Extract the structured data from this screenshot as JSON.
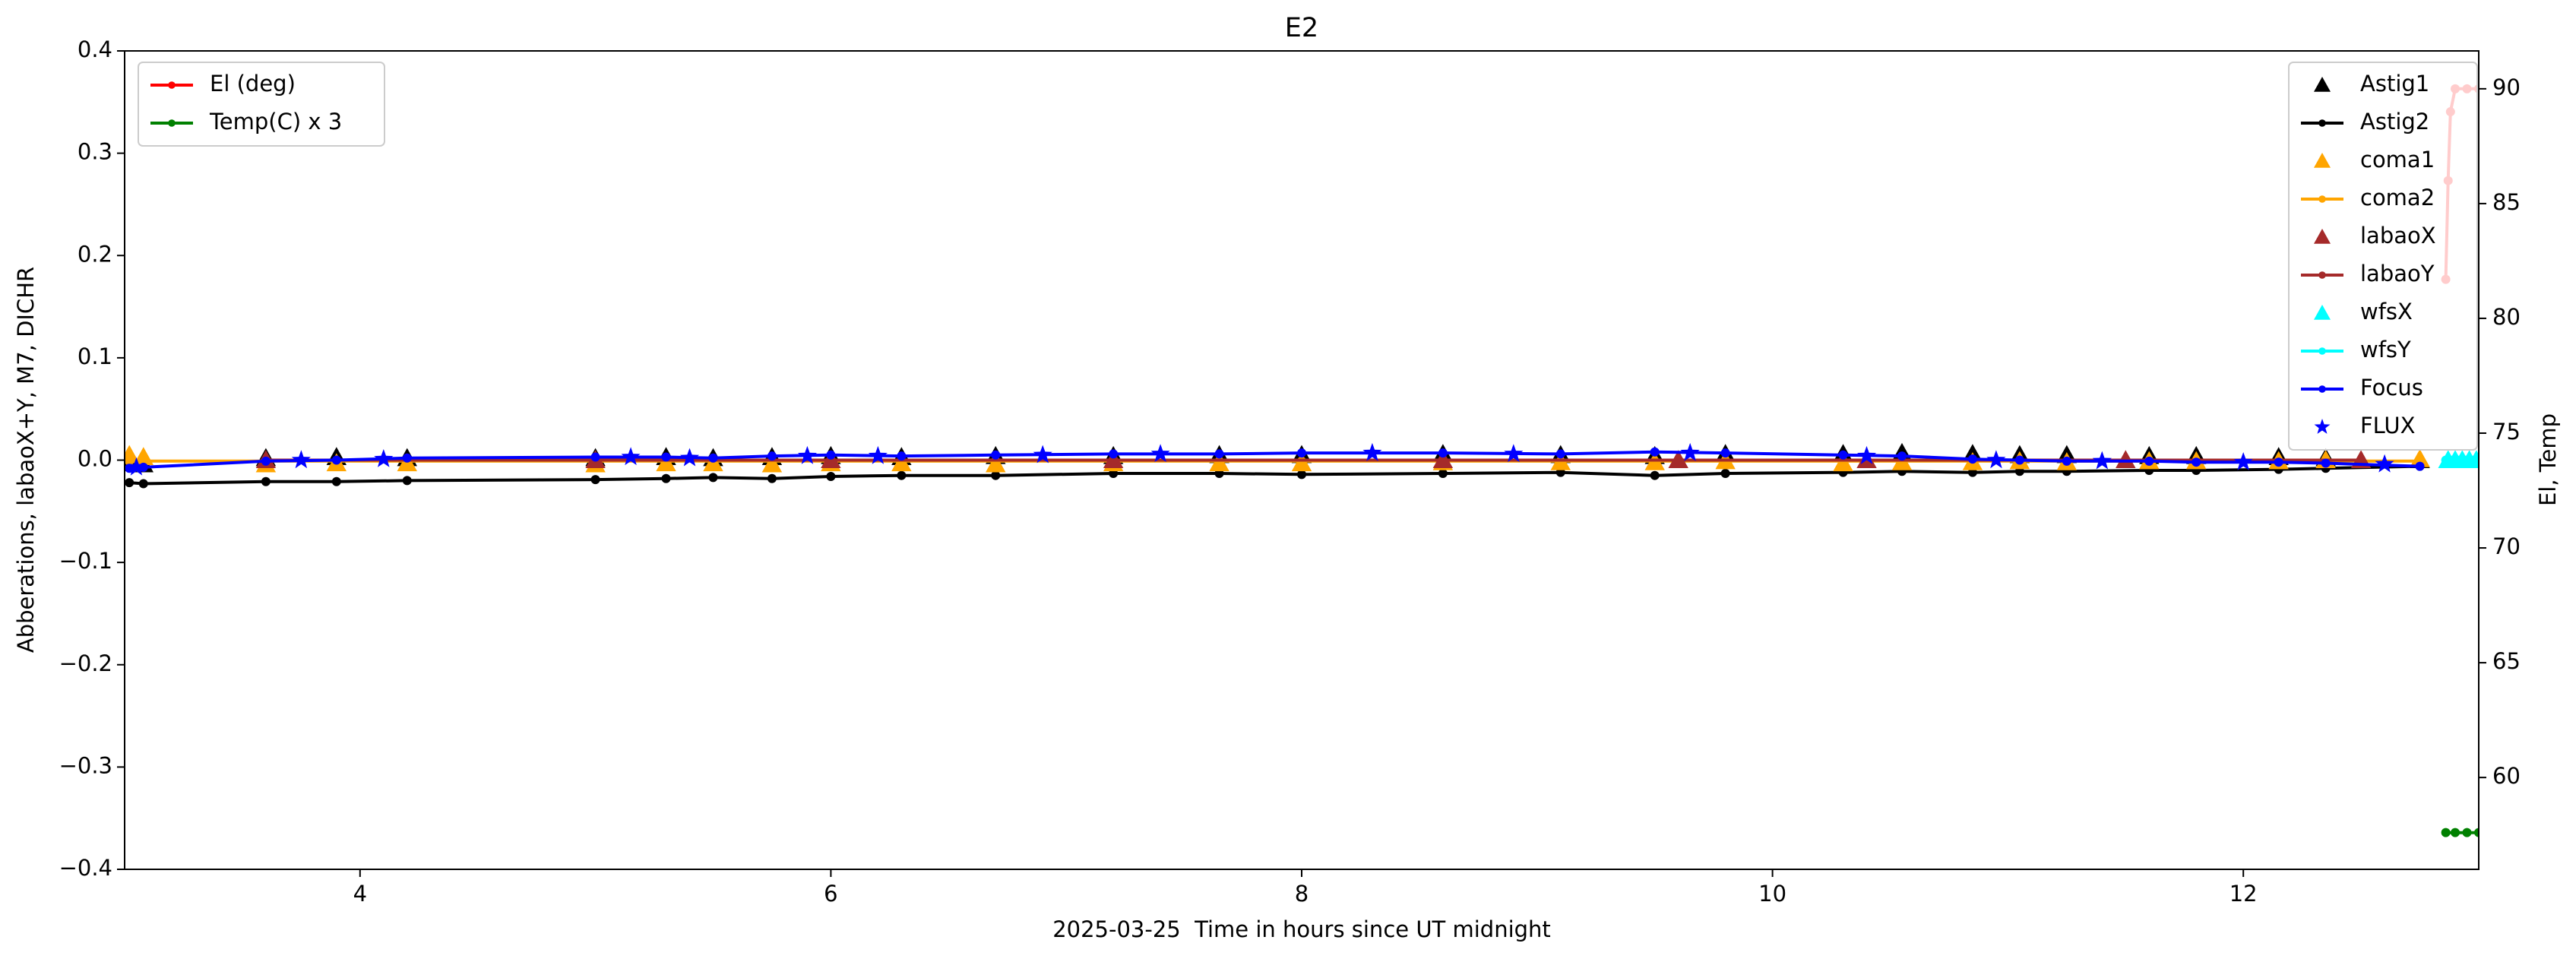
{
  "chart_data": {
    "type": "line",
    "title": "E2",
    "xlabel": "2025-03-25  Time in hours since UT midnight",
    "ylabel": "Abberations, labaoX+Y, M7, DICHR",
    "y2label": "El, Temp",
    "xlim": [
      3,
      13
    ],
    "xticks": [
      4,
      6,
      8,
      10,
      12
    ],
    "ylim": [
      -0.4,
      0.4
    ],
    "yticks": [
      {
        "value": -0.4,
        "label": "−0.4"
      },
      {
        "value": -0.3,
        "label": "−0.3"
      },
      {
        "value": -0.2,
        "label": "−0.2"
      },
      {
        "value": -0.1,
        "label": "−0.1"
      },
      {
        "value": 0,
        "label": "0.0"
      },
      0.1,
      0.2,
      0.3,
      0.4
    ],
    "y2lim": [
      56,
      91.65
    ],
    "y2ticks": [
      60,
      65,
      70,
      75,
      80,
      85,
      90
    ],
    "series": [
      {
        "name": "Astig1",
        "color": "#000000",
        "marker": "triangle",
        "line": false,
        "legend": "upper right",
        "x": [
          3.02,
          3.08,
          3.6,
          3.9,
          4.2,
          5.0,
          5.3,
          5.5,
          5.75,
          6.0,
          6.3,
          6.7,
          7.2,
          7.65,
          8.0,
          8.6,
          9.1,
          9.5,
          9.8,
          10.3,
          10.55,
          10.85,
          11.05,
          11.25,
          11.6,
          11.8,
          12.15,
          12.35,
          12.75
        ],
        "values": [
          -0.003,
          -0.004,
          0.002,
          0.003,
          0.002,
          0.002,
          0.003,
          0.002,
          0.003,
          0.004,
          0.003,
          0.004,
          0.004,
          0.005,
          0.005,
          0.006,
          0.005,
          0.004,
          0.006,
          0.006,
          0.007,
          0.006,
          0.005,
          0.005,
          0.004,
          0.004,
          0.003,
          0.002,
          0.0
        ]
      },
      {
        "name": "Astig2",
        "color": "#000000",
        "marker": "dot",
        "line": true,
        "legend": "upper right",
        "x": [
          3.02,
          3.08,
          3.6,
          3.9,
          4.2,
          5.0,
          5.3,
          5.5,
          5.75,
          6.0,
          6.3,
          6.7,
          7.2,
          7.65,
          8.0,
          8.6,
          9.1,
          9.5,
          9.8,
          10.3,
          10.55,
          10.85,
          11.05,
          11.25,
          11.6,
          11.8,
          12.15,
          12.35,
          12.75
        ],
        "values": [
          -0.022,
          -0.023,
          -0.021,
          -0.021,
          -0.02,
          -0.019,
          -0.018,
          -0.017,
          -0.018,
          -0.016,
          -0.015,
          -0.015,
          -0.013,
          -0.013,
          -0.014,
          -0.013,
          -0.012,
          -0.015,
          -0.013,
          -0.012,
          -0.011,
          -0.012,
          -0.011,
          -0.011,
          -0.01,
          -0.01,
          -0.009,
          -0.008,
          -0.006
        ]
      },
      {
        "name": "coma1",
        "color": "#ffa500",
        "marker": "triangle",
        "line": false,
        "legend": "upper right",
        "x": [
          3.02,
          3.08,
          3.6,
          3.9,
          4.2,
          5.0,
          5.3,
          5.5,
          5.75,
          6.0,
          6.3,
          6.7,
          7.2,
          7.65,
          8.0,
          8.6,
          9.1,
          9.5,
          9.8,
          10.3,
          10.55,
          10.85,
          11.05,
          11.25,
          11.6,
          11.8,
          12.15,
          12.35,
          12.75
        ],
        "values": [
          0.005,
          0.003,
          -0.004,
          -0.003,
          -0.003,
          -0.004,
          -0.003,
          -0.003,
          -0.004,
          -0.003,
          -0.003,
          -0.004,
          -0.003,
          -0.003,
          -0.003,
          -0.002,
          -0.002,
          -0.002,
          -0.001,
          -0.003,
          -0.002,
          -0.002,
          -0.001,
          -0.002,
          -0.001,
          -0.001,
          -0.001,
          0.0,
          0.001
        ]
      },
      {
        "name": "coma2",
        "color": "#ffa500",
        "marker": "dot",
        "line": true,
        "legend": "upper right",
        "x": [
          3.02,
          3.6,
          4.2,
          5.0,
          5.5,
          5.75,
          6.3,
          6.7,
          7.65,
          8.0,
          9.1,
          9.5,
          9.8,
          10.3,
          10.55,
          11.05,
          11.6,
          12.15,
          12.75
        ],
        "values": [
          -0.001,
          -0.001,
          -0.001,
          -0.001,
          -0.001,
          -0.001,
          -0.001,
          -0.001,
          -0.001,
          -0.001,
          -0.001,
          -0.001,
          -0.001,
          -0.001,
          -0.001,
          -0.001,
          -0.001,
          -0.001,
          -0.001
        ]
      },
      {
        "name": "labaoX",
        "color": "#a52a2a",
        "marker": "triangle",
        "line": false,
        "legend": "upper right",
        "x": [
          3.6,
          5.0,
          6.0,
          7.2,
          8.6,
          9.6,
          10.4,
          11.5,
          12.5
        ],
        "values": [
          0.0,
          0.0,
          0.0,
          0.0,
          0.0,
          0.0,
          0.0,
          0.0,
          0.0
        ]
      },
      {
        "name": "labaoY",
        "color": "#a52a2a",
        "marker": "dot",
        "line": true,
        "legend": "upper right",
        "x": [
          3.6,
          5.0,
          6.0,
          7.2,
          8.6,
          9.6,
          10.4,
          11.5,
          12.5
        ],
        "values": [
          0.0,
          0.0,
          0.0,
          0.0,
          0.0,
          0.0,
          0.0,
          0.0,
          0.0
        ]
      },
      {
        "name": "wfsX",
        "color": "#00ffff",
        "marker": "triangle",
        "line": false,
        "legend": "upper right",
        "x": [
          12.87,
          12.9,
          12.93,
          12.96,
          12.99
        ],
        "values": [
          0.0,
          0.0,
          0.0,
          0.0,
          0.0
        ]
      },
      {
        "name": "wfsY",
        "color": "#00ffff",
        "marker": "dot",
        "line": true,
        "legend": "upper right",
        "x": [
          12.86,
          12.89,
          12.92,
          12.95,
          12.98,
          13.0
        ],
        "values": [
          0.0,
          0.0,
          0.0,
          0.0,
          0.0,
          0.0
        ]
      },
      {
        "name": "Focus",
        "color": "#0000ff",
        "marker": "dot",
        "line": true,
        "legend": "upper right",
        "x": [
          3.02,
          3.08,
          3.6,
          3.9,
          4.2,
          5.0,
          5.3,
          5.5,
          5.75,
          6.0,
          6.3,
          6.7,
          7.2,
          7.65,
          8.0,
          8.6,
          9.1,
          9.5,
          9.8,
          10.3,
          10.55,
          10.85,
          11.05,
          11.25,
          11.6,
          11.8,
          12.15,
          12.35,
          12.75
        ],
        "values": [
          -0.008,
          -0.007,
          -0.001,
          0.0,
          0.002,
          0.003,
          0.003,
          0.002,
          0.004,
          0.005,
          0.004,
          0.005,
          0.006,
          0.006,
          0.007,
          0.007,
          0.006,
          0.008,
          0.007,
          0.005,
          0.004,
          0.001,
          0.0,
          -0.001,
          -0.001,
          -0.002,
          -0.002,
          -0.003,
          -0.006
        ]
      },
      {
        "name": "FLUX",
        "color": "#0000ff",
        "marker": "star",
        "line": false,
        "legend": "upper right",
        "x": [
          3.05,
          3.75,
          4.1,
          5.15,
          5.4,
          5.9,
          6.2,
          6.9,
          7.4,
          8.3,
          8.9,
          9.65,
          10.4,
          10.95,
          11.4,
          12.0,
          12.6
        ],
        "values": [
          -0.007,
          0.0,
          0.001,
          0.003,
          0.002,
          0.004,
          0.004,
          0.005,
          0.006,
          0.007,
          0.006,
          0.007,
          0.004,
          0.0,
          -0.001,
          -0.002,
          -0.004
        ]
      },
      {
        "name": "El (deg)",
        "color": "#ff0000",
        "marker": "dot",
        "line": true,
        "legend": "upper left",
        "axis": "y2",
        "x": [
          12.86,
          12.87,
          12.88,
          12.9,
          12.95,
          13.0
        ],
        "values": [
          81.7,
          86,
          89,
          90,
          90,
          90
        ]
      },
      {
        "name": "Temp(C) x 3",
        "color": "#008000",
        "marker": "dot",
        "line": true,
        "legend": "upper left",
        "axis": "y2",
        "x": [
          12.86,
          12.9,
          12.95,
          13.0
        ],
        "values": [
          57.6,
          57.6,
          57.6,
          57.6
        ]
      }
    ]
  }
}
